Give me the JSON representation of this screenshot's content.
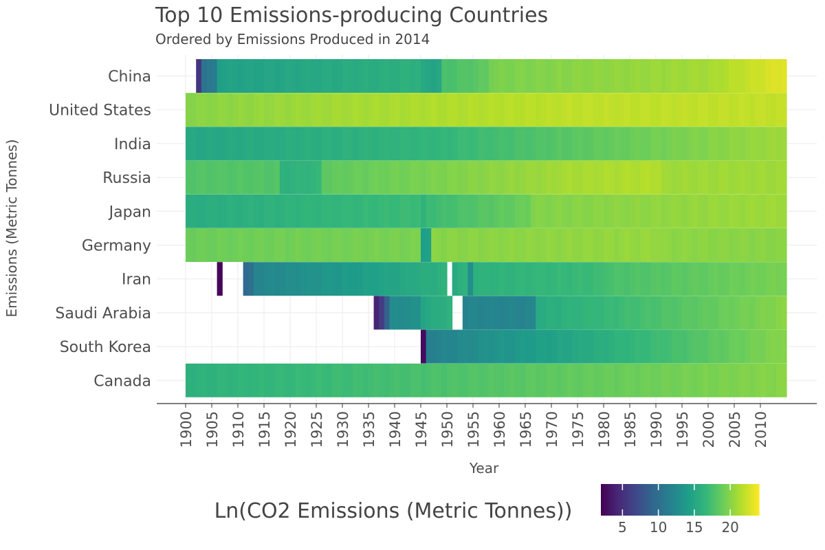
{
  "chart_data": {
    "type": "heatmap",
    "title": "Top 10 Emissions-producing Countries",
    "subtitle": "Ordered by Emissions Produced in 2014",
    "xlabel": "Year",
    "ylabel": "Emissions (Metric Tonnes)",
    "xlim": [
      1900,
      2014
    ],
    "x_ticks": [
      1900,
      1905,
      1910,
      1915,
      1920,
      1925,
      1930,
      1935,
      1940,
      1945,
      1950,
      1955,
      1960,
      1965,
      1970,
      1975,
      1980,
      1985,
      1990,
      1995,
      2000,
      2005,
      2010
    ],
    "legend": {
      "title": "Ln(CO2 Emissions (Metric Tonnes))",
      "range": [
        2,
        24
      ],
      "ticks": [
        5,
        10,
        15,
        20
      ],
      "placement": "bottom-right"
    },
    "grid": true,
    "colormap": "viridis",
    "series": [
      {
        "name": "China",
        "segments": [
          {
            "start": 1902,
            "end": 1902,
            "from": 5.5,
            "to": 5.5
          },
          {
            "start": 1903,
            "end": 1905,
            "from": 10.5,
            "to": 11.0
          },
          {
            "start": 1906,
            "end": 1944,
            "from": 14.5,
            "to": 16.0
          },
          {
            "start": 1945,
            "end": 1948,
            "from": 15.0,
            "to": 15.0
          },
          {
            "start": 1949,
            "end": 1957,
            "from": 17.5,
            "to": 18.5
          },
          {
            "start": 1958,
            "end": 2000,
            "from": 19.5,
            "to": 21.0
          },
          {
            "start": 2001,
            "end": 2014,
            "from": 21.2,
            "to": 23.1
          }
        ]
      },
      {
        "name": "United States",
        "segments": [
          {
            "start": 1900,
            "end": 1930,
            "from": 20.0,
            "to": 21.0
          },
          {
            "start": 1931,
            "end": 1970,
            "from": 21.0,
            "to": 21.8
          },
          {
            "start": 1971,
            "end": 2014,
            "from": 21.9,
            "to": 22.0
          }
        ]
      },
      {
        "name": "India",
        "segments": [
          {
            "start": 1900,
            "end": 1950,
            "from": 15.0,
            "to": 16.5
          },
          {
            "start": 1951,
            "end": 2014,
            "from": 16.8,
            "to": 20.8
          }
        ]
      },
      {
        "name": "Russia",
        "segments": [
          {
            "start": 1900,
            "end": 1917,
            "from": 18.0,
            "to": 18.0
          },
          {
            "start": 1918,
            "end": 1925,
            "from": 16.0,
            "to": 16.5
          },
          {
            "start": 1926,
            "end": 1970,
            "from": 18.5,
            "to": 20.8
          },
          {
            "start": 1971,
            "end": 1990,
            "from": 21.0,
            "to": 21.5
          },
          {
            "start": 1991,
            "end": 2014,
            "from": 20.8,
            "to": 20.8
          }
        ]
      },
      {
        "name": "Japan",
        "segments": [
          {
            "start": 1900,
            "end": 1944,
            "from": 15.5,
            "to": 17.0
          },
          {
            "start": 1945,
            "end": 1945,
            "from": 16.0,
            "to": 16.0
          },
          {
            "start": 1946,
            "end": 1965,
            "from": 17.0,
            "to": 19.0
          },
          {
            "start": 1966,
            "end": 2014,
            "from": 19.8,
            "to": 20.8
          }
        ]
      },
      {
        "name": "Germany",
        "segments": [
          {
            "start": 1900,
            "end": 1944,
            "from": 19.0,
            "to": 19.5
          },
          {
            "start": 1945,
            "end": 1946,
            "from": 14.5,
            "to": 14.5
          },
          {
            "start": 1947,
            "end": 1990,
            "from": 20.0,
            "to": 20.5
          },
          {
            "start": 1991,
            "end": 2014,
            "from": 20.2,
            "to": 20.0
          }
        ]
      },
      {
        "name": "Iran",
        "segments": [
          {
            "start": 1906,
            "end": 1906,
            "from": 2.5,
            "to": 2.5
          },
          {
            "start": 1911,
            "end": 1912,
            "from": 9.5,
            "to": 10.0
          },
          {
            "start": 1913,
            "end": 1949,
            "from": 12.0,
            "to": 16.0
          },
          {
            "start": 1951,
            "end": 1953,
            "from": 15.5,
            "to": 16.0
          },
          {
            "start": 1954,
            "end": 1954,
            "from": 13.0,
            "to": 13.0
          },
          {
            "start": 1955,
            "end": 1979,
            "from": 16.0,
            "to": 17.0
          },
          {
            "start": 1980,
            "end": 2014,
            "from": 17.5,
            "to": 19.5
          }
        ]
      },
      {
        "name": "Saudi Arabia",
        "segments": [
          {
            "start": 1936,
            "end": 1937,
            "from": 4.0,
            "to": 6.0
          },
          {
            "start": 1938,
            "end": 1938,
            "from": 9.0,
            "to": 9.0
          },
          {
            "start": 1939,
            "end": 1944,
            "from": 12.5,
            "to": 13.0
          },
          {
            "start": 1945,
            "end": 1950,
            "from": 15.0,
            "to": 16.0
          },
          {
            "start": 1953,
            "end": 1966,
            "from": 12.0,
            "to": 12.0
          },
          {
            "start": 1967,
            "end": 2014,
            "from": 15.5,
            "to": 20.0
          }
        ]
      },
      {
        "name": "South Korea",
        "segments": [
          {
            "start": 1945,
            "end": 1945,
            "from": 2.5,
            "to": 2.5
          },
          {
            "start": 1946,
            "end": 1960,
            "from": 11.5,
            "to": 13.5
          },
          {
            "start": 1961,
            "end": 2014,
            "from": 13.5,
            "to": 20.0
          }
        ]
      },
      {
        "name": "Canada",
        "segments": [
          {
            "start": 1900,
            "end": 2014,
            "from": 16.0,
            "to": 20.0
          }
        ]
      }
    ]
  }
}
